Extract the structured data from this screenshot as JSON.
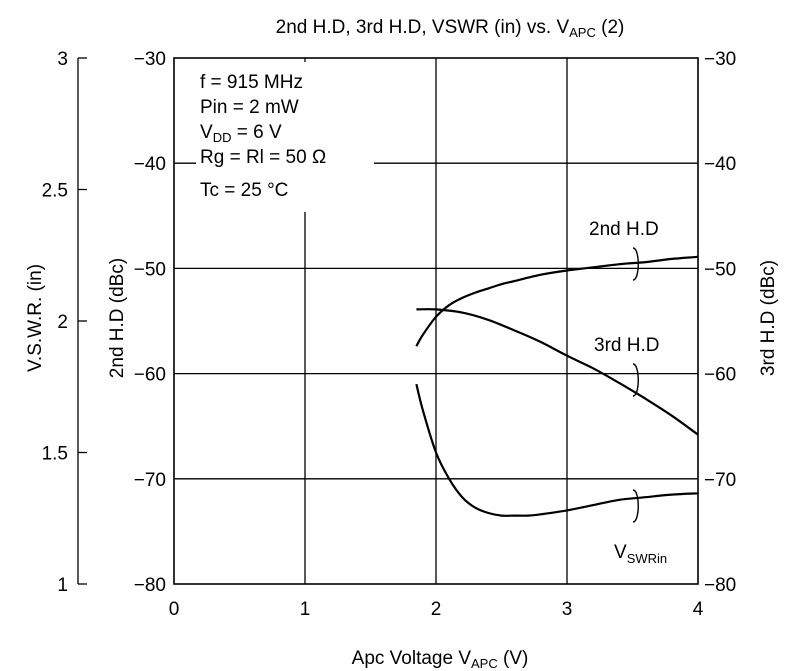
{
  "chart_data": {
    "type": "line",
    "title": "2nd H.D, 3rd H.D, VSWR (in) vs. V",
    "title_sub": "APC",
    "title_suffix": " (2)",
    "xlabel": "Apc Voltage  V",
    "xlabel_sub": "APC",
    "xlabel_suffix": "  (V)",
    "ylabel_left": "2nd H.D  (dBc)",
    "ylabel_right": "3rd H.D  (dBc)",
    "ylabel_vswr": "V.S.W.R. (in)",
    "xlim": [
      0,
      4
    ],
    "ylim": [
      -80,
      -30
    ],
    "vswr_lim": [
      1,
      3
    ],
    "x_ticks": [
      "0",
      "1",
      "2",
      "3",
      "4"
    ],
    "y_ticks": [
      "−30",
      "−40",
      "−50",
      "−60",
      "−70",
      "−80"
    ],
    "vswr_ticks": [
      "3",
      "2.5",
      "2",
      "1.5",
      "1"
    ],
    "grid": true,
    "conditions": {
      "freq": "f = 915 MHz",
      "pin": "Pin = 2 mW",
      "vdd_main": "V",
      "vdd_sub": "DD",
      "vdd_value": " = 6 V",
      "rg": "Rg = Rl = 50 Ω",
      "tc": "Tc = 25 °C"
    },
    "series": [
      {
        "name": "2nd H.D",
        "axis": "left",
        "x": [
          1.85,
          1.9,
          2.0,
          2.1,
          2.2,
          2.3,
          2.4,
          2.5,
          2.6,
          2.8,
          3.0,
          3.2,
          3.4,
          3.6,
          3.8,
          4.0
        ],
        "values": [
          -57.4,
          -56.3,
          -54.6,
          -53.5,
          -52.8,
          -52.3,
          -51.9,
          -51.5,
          -51.2,
          -50.6,
          -50.2,
          -49.9,
          -49.6,
          -49.4,
          -49.1,
          -48.9
        ]
      },
      {
        "name": "3rd H.D",
        "axis": "right",
        "x": [
          1.85,
          2.0,
          2.2,
          2.4,
          2.6,
          2.8,
          3.0,
          3.2,
          3.4,
          3.6,
          3.8,
          4.0
        ],
        "values": [
          -53.9,
          -53.9,
          -54.2,
          -54.9,
          -55.9,
          -57.0,
          -58.3,
          -59.5,
          -60.9,
          -62.4,
          -64.0,
          -65.8
        ]
      },
      {
        "name": "V",
        "name_sub": "SWRin",
        "axis": "vswr",
        "x": [
          1.85,
          1.9,
          2.0,
          2.1,
          2.2,
          2.3,
          2.4,
          2.5,
          2.6,
          2.7,
          2.8,
          3.0,
          3.2,
          3.4,
          3.6,
          3.8,
          4.0
        ],
        "values": [
          1.76,
          1.66,
          1.5,
          1.4,
          1.33,
          1.29,
          1.27,
          1.26,
          1.26,
          1.26,
          1.265,
          1.28,
          1.3,
          1.32,
          1.33,
          1.34,
          1.345
        ]
      }
    ]
  }
}
